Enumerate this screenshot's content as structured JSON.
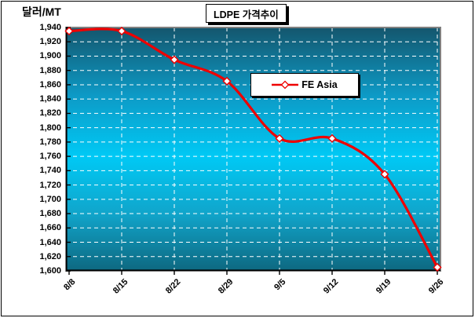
{
  "chart_data": {
    "type": "line",
    "smooth": true,
    "title": "LDPE 가격추이",
    "ylabel": "달러/MT",
    "x": [
      "8/8",
      "8/15",
      "8/22",
      "8/29",
      "9/5",
      "9/12",
      "9/19",
      "9/26"
    ],
    "series": [
      {
        "name": "FE Asia",
        "values": [
          1935,
          1935,
          1895,
          1865,
          1785,
          1785,
          1735,
          1605
        ],
        "color": "#ee0000",
        "marker": "diamond",
        "marker_fill": "#ffffff"
      }
    ],
    "ylim": [
      1600,
      1940
    ],
    "ytick_step": 20,
    "grid": true,
    "grid_style": "white-dashed-horizontal-and-vertical",
    "legend_position": "inside-upper-middle",
    "plot_bg_gradient": [
      "#14566d",
      "#0d9ac6",
      "#00c9f5",
      "#10a6cc",
      "#0e6880"
    ]
  }
}
